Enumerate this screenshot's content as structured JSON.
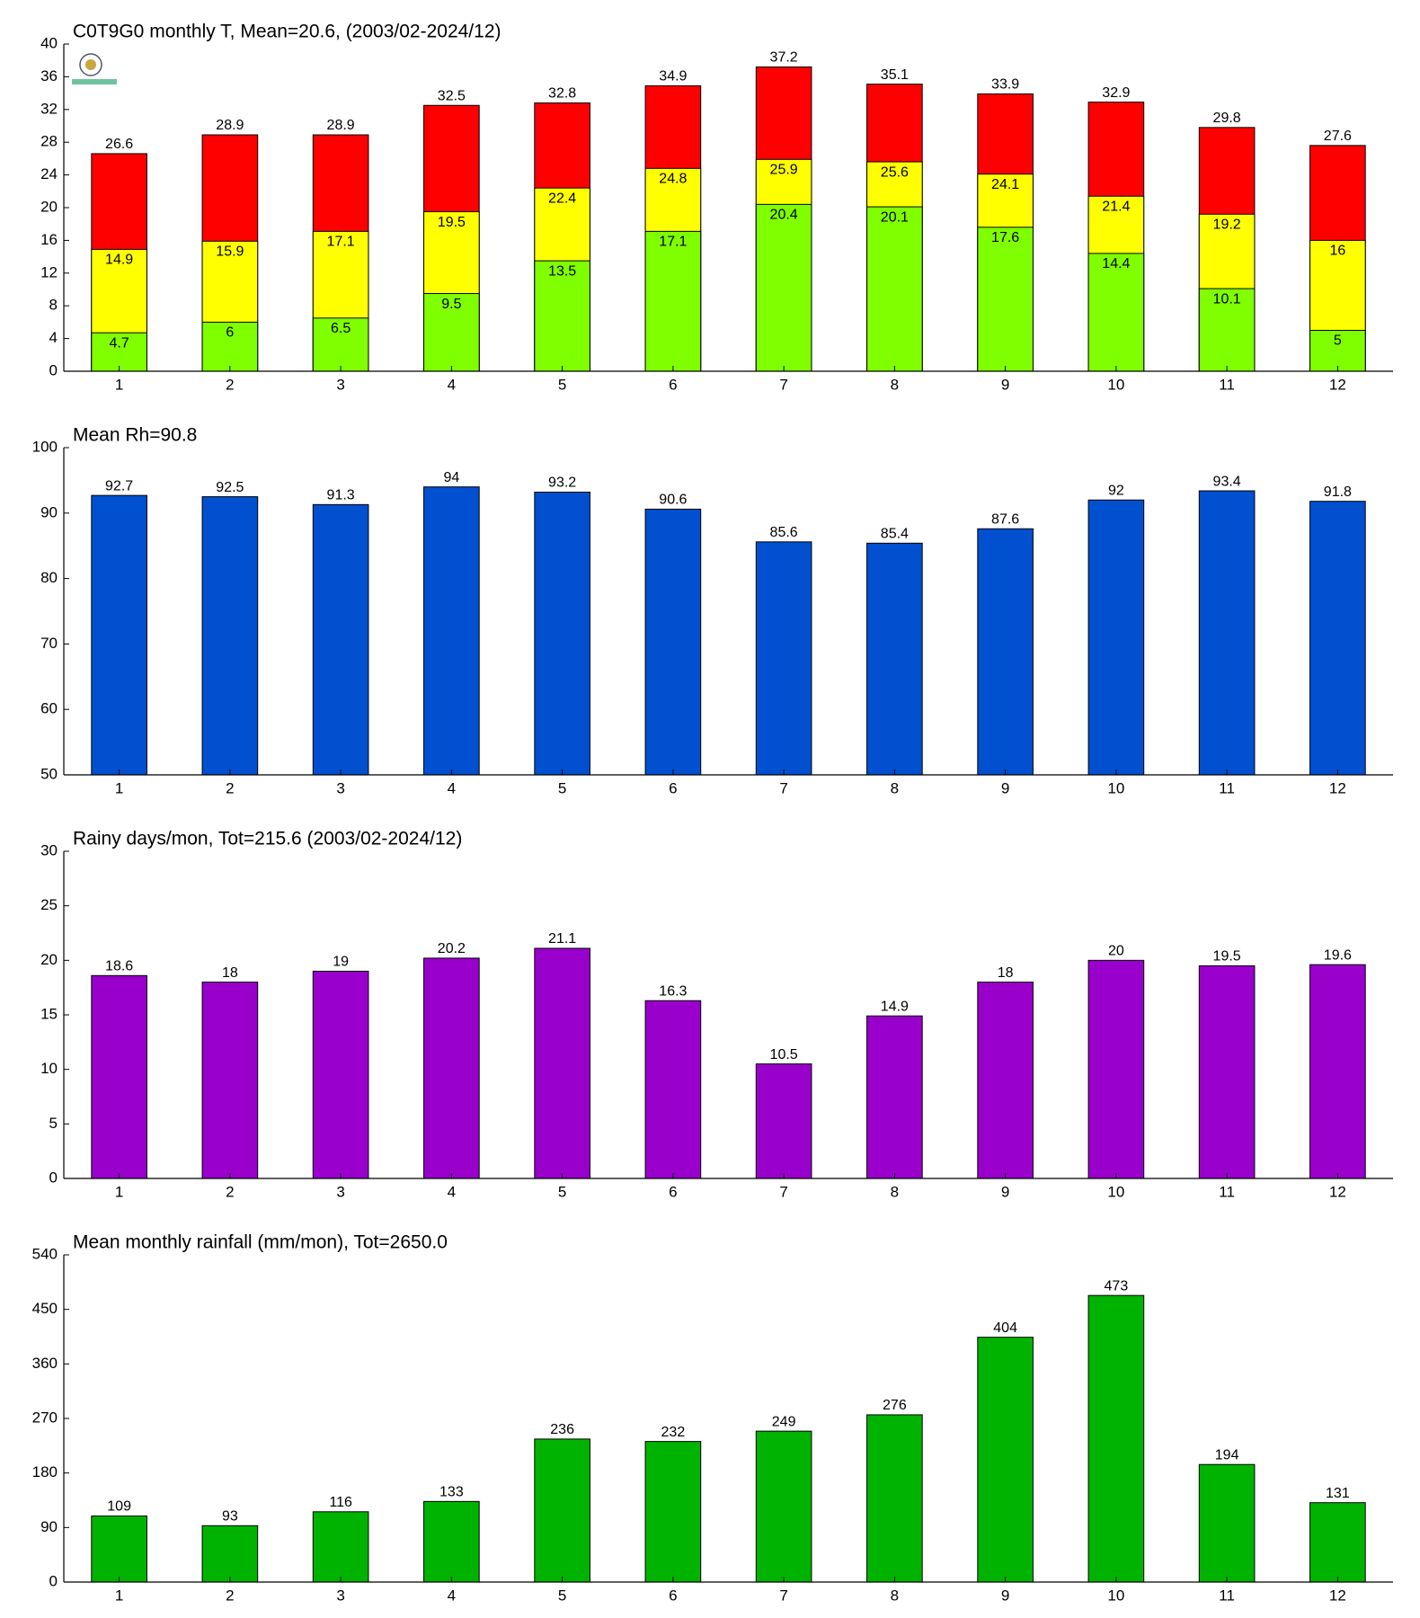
{
  "chart_data": [
    {
      "type": "bar",
      "barmode": "overlay",
      "title": "C0T9G0 monthly T, Mean=20.6, (2003/02-2024/12)",
      "categories": [
        1,
        2,
        3,
        4,
        5,
        6,
        7,
        8,
        9,
        10,
        11,
        12
      ],
      "series": [
        {
          "color": "#ff0000",
          "values": [
            26.6,
            28.9,
            28.9,
            32.5,
            32.8,
            34.9,
            37.2,
            35.1,
            33.9,
            32.9,
            29.8,
            27.6
          ]
        },
        {
          "color": "#ffff00",
          "values": [
            14.9,
            15.9,
            17.1,
            19.5,
            22.4,
            24.8,
            25.9,
            25.6,
            24.1,
            21.4,
            19.2,
            16
          ]
        },
        {
          "color": "#80ff00",
          "values": [
            4.7,
            6,
            6.5,
            9.5,
            13.5,
            17.1,
            20.4,
            20.1,
            17.6,
            14.4,
            10.1,
            5
          ]
        }
      ],
      "ylim": [
        0,
        40
      ],
      "yticks": [
        0,
        4,
        8,
        12,
        16,
        20,
        24,
        28,
        32,
        36,
        40
      ]
    },
    {
      "type": "bar",
      "title": "Mean Rh=90.8",
      "categories": [
        1,
        2,
        3,
        4,
        5,
        6,
        7,
        8,
        9,
        10,
        11,
        12
      ],
      "values": [
        92.7,
        92.5,
        91.3,
        94,
        93.2,
        90.6,
        85.6,
        85.4,
        87.6,
        92,
        93.4,
        91.8
      ],
      "color": "#0050d0",
      "ylim": [
        50,
        100
      ],
      "yticks": [
        50,
        60,
        70,
        80,
        90,
        100
      ]
    },
    {
      "type": "bar",
      "title": "Rainy days/mon, Tot=215.6 (2003/02-2024/12)",
      "categories": [
        1,
        2,
        3,
        4,
        5,
        6,
        7,
        8,
        9,
        10,
        11,
        12
      ],
      "values": [
        18.6,
        18,
        19,
        20.2,
        21.1,
        16.3,
        10.5,
        14.9,
        18,
        20,
        19.5,
        19.6
      ],
      "color": "#9900cc",
      "ylim": [
        0,
        30
      ],
      "yticks": [
        0,
        5,
        10,
        15,
        20,
        25,
        30
      ]
    },
    {
      "type": "bar",
      "title": "Mean monthly rainfall (mm/mon), Tot=2650.0",
      "categories": [
        1,
        2,
        3,
        4,
        5,
        6,
        7,
        8,
        9,
        10,
        11,
        12
      ],
      "values": [
        109,
        93,
        116,
        133,
        236,
        232,
        249,
        276,
        404,
        473,
        194,
        131
      ],
      "color": "#00b300",
      "ylim": [
        0,
        540
      ],
      "yticks": [
        0,
        90,
        180,
        270,
        360,
        450,
        540
      ]
    }
  ]
}
